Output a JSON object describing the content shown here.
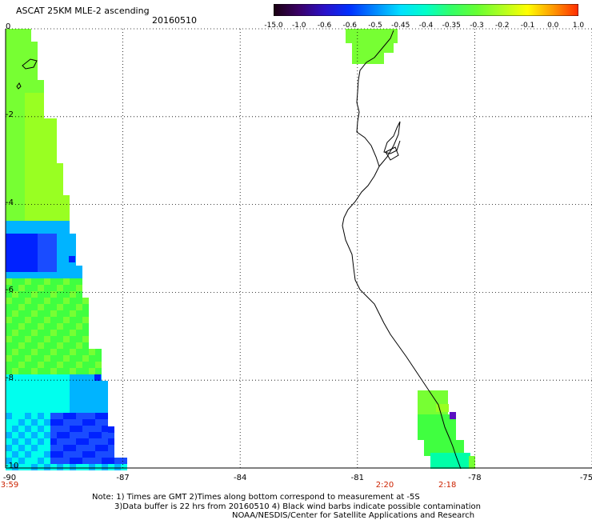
{
  "header": {
    "title": "ASCAT 25KM MLE-2 ascending",
    "date": "20160510"
  },
  "colorbar": {
    "labels": [
      "-15.0",
      "-1.0",
      "-0.6",
      "-0.6",
      "-0.5",
      "-0.45",
      "-0.4",
      "-0.35",
      "-0.3",
      "-0.2",
      "-0.1",
      "0.0",
      "1.0"
    ],
    "colors": [
      "#1a0010",
      "#3a0066",
      "#2a10c8",
      "#0030ff",
      "#0088ff",
      "#00e0ff",
      "#00ffc8",
      "#33ff66",
      "#66ff33",
      "#b0ff20",
      "#ffff00",
      "#ff9900",
      "#ff2a00"
    ]
  },
  "map": {
    "lon_range": [
      -90,
      -75
    ],
    "lat_range": [
      -10,
      0
    ],
    "lon_ticks": [
      "-90",
      "-87",
      "-84",
      "-81",
      "-78",
      "-75"
    ],
    "lat_ticks": [
      "0",
      "-2",
      "-4",
      "-6",
      "-8",
      "-10"
    ],
    "gridlines": true,
    "swath_colors": {
      "green": "#40ff40",
      "yellowgreen": "#99ff22",
      "lime": "#77ff33",
      "cyan": "#00ffee",
      "skyblue": "#00b4ff",
      "blue": "#1a4cff",
      "deepblue": "#0022ff",
      "purple": "#5a10c0",
      "teal": "#00ffa8"
    }
  },
  "time_labels": [
    {
      "text": "3:59",
      "lon": -90
    },
    {
      "text": "2:20",
      "lon": -80.3
    },
    {
      "text": "2:18",
      "lon": -78.7
    }
  ],
  "notes": [
    "Note: 1) Times are GMT 2)Times along bottom correspond to measurement at -5S",
    "3)Data buffer is 22 hrs from 20160510 4) Black wind barbs indicate possible contamination",
    "NOAA/NESDIS/Center for Satellite Applications and Research"
  ]
}
